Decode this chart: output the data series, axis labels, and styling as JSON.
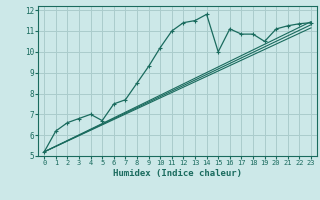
{
  "xlabel": "Humidex (Indice chaleur)",
  "bg_color": "#cce8e8",
  "grid_color": "#aacccc",
  "line_color": "#1a6b5e",
  "xlim": [
    -0.5,
    23.5
  ],
  "ylim": [
    5,
    12.2
  ],
  "xticks": [
    0,
    1,
    2,
    3,
    4,
    5,
    6,
    7,
    8,
    9,
    10,
    11,
    12,
    13,
    14,
    15,
    16,
    17,
    18,
    19,
    20,
    21,
    22,
    23
  ],
  "yticks": [
    5,
    6,
    7,
    8,
    9,
    10,
    11,
    12
  ],
  "main_series": {
    "x": [
      0,
      1,
      2,
      3,
      4,
      5,
      6,
      7,
      8,
      9,
      10,
      11,
      12,
      13,
      14,
      15,
      16,
      17,
      18,
      19,
      20,
      21,
      22,
      23
    ],
    "y": [
      5.2,
      6.2,
      6.6,
      6.8,
      7.0,
      6.7,
      7.5,
      7.7,
      8.5,
      9.3,
      10.2,
      11.0,
      11.4,
      11.5,
      11.8,
      10.0,
      11.1,
      10.85,
      10.85,
      10.5,
      11.1,
      11.25,
      11.35,
      11.4
    ]
  },
  "straight_lines": [
    {
      "x": [
        0,
        23
      ],
      "y": [
        5.2,
        11.45
      ]
    },
    {
      "x": [
        0,
        23
      ],
      "y": [
        5.2,
        11.3
      ]
    },
    {
      "x": [
        0,
        23
      ],
      "y": [
        5.2,
        11.15
      ]
    }
  ]
}
